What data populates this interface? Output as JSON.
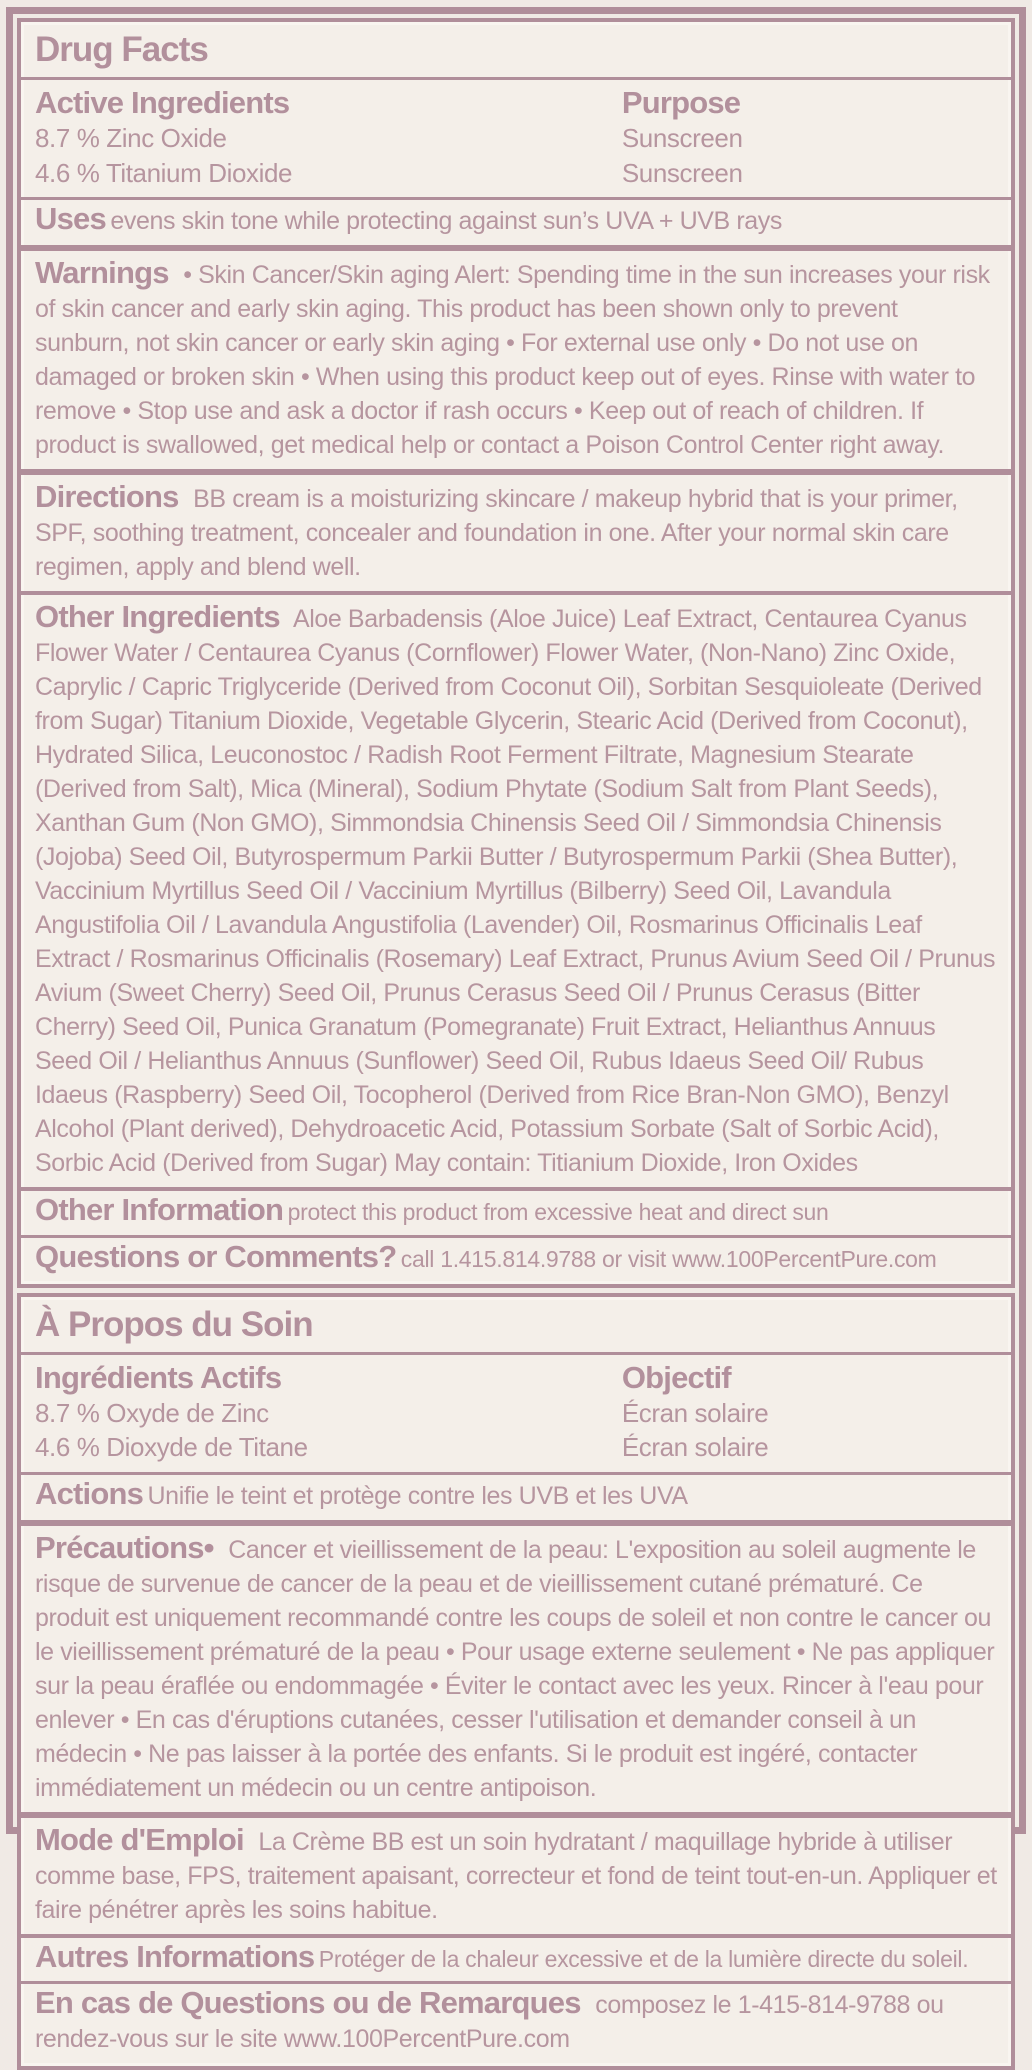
{
  "colors": {
    "background": "#f0eae5",
    "panel_background": "#f4efe9",
    "heading_ink": "#b2909c",
    "body_ink": "#b6959f",
    "border": "#b08e9a"
  },
  "en": {
    "title": "Drug Facts",
    "active": {
      "heading": "Active Ingredients",
      "purpose_heading": "Purpose",
      "rows": [
        {
          "ingredient": "8.7 % Zinc Oxide",
          "purpose": "Sunscreen"
        },
        {
          "ingredient": "4.6 % Titanium Dioxide",
          "purpose": "Sunscreen"
        }
      ]
    },
    "uses": {
      "heading": "Uses",
      "text": "evens skin tone while protecting against sun’s UVA + UVB rays"
    },
    "warnings": {
      "heading": "Warnings",
      "text": "• Skin Cancer/Skin aging Alert: Spending time in the sun increases your risk of skin cancer and early skin aging. This product has been shown only to prevent sunburn, not skin cancer or early skin aging • For external use only • Do not use on damaged or broken skin • When using this product keep out of eyes. Rinse with water to remove • Stop use and ask a doctor if rash occurs • Keep out of reach of children. If product is swallowed, get medical help or contact a Poison Control Center right away."
    },
    "directions": {
      "heading": "Directions",
      "text": "BB cream is a moisturizing skincare / makeup hybrid that is your primer, SPF, soothing treatment, concealer and foundation in one.  After your normal skin care regimen, apply and blend well."
    },
    "other_ingredients": {
      "heading": "Other Ingredients",
      "text": "Aloe Barbadensis (Aloe Juice) Leaf Extract, Centaurea Cyanus Flower Water / Centaurea Cyanus (Cornflower) Flower Water, (Non-Nano) Zinc Oxide, Caprylic / Capric Triglyceride (Derived from Coconut Oil), Sorbitan Sesquioleate (Derived from Sugar) Titanium Dioxide, Vegetable Glycerin, Stearic Acid (Derived from Coconut), Hydrated Silica, Leuconostoc / Radish Root Ferment Filtrate, Magnesium Stearate (Derived from Salt), Mica (Mineral), Sodium Phytate (Sodium Salt from Plant Seeds), Xanthan Gum (Non GMO), Simmondsia Chinensis Seed Oil / Simmondsia Chinensis (Jojoba) Seed Oil, Butyrospermum Parkii Butter / Butyrospermum Parkii (Shea Butter), Vaccinium Myrtillus Seed Oil / Vaccinium Myrtillus (Bilberry) Seed Oil, Lavandula Angustifolia Oil / Lavandula Angustifolia (Lavender) Oil, Rosmarinus Officinalis Leaf Extract / Rosmarinus Officinalis (Rosemary) Leaf Extract, Prunus Avium Seed Oil / Prunus Avium (Sweet Cherry) Seed Oil, Prunus Cerasus Seed Oil / Prunus Cerasus (Bitter Cherry) Seed Oil, Punica Granatum (Pomegranate)  Fruit Extract, Helianthus Annuus Seed Oil / Helianthus Annuus (Sunflower) Seed Oil, Rubus Idaeus Seed Oil/ Rubus Idaeus (Raspberry) Seed Oil, Tocopherol (Derived from Rice Bran-Non GMO), Benzyl Alcohol (Plant derived), Dehydroacetic Acid, Potassium Sorbate (Salt of Sorbic Acid), Sorbic Acid (Derived from Sugar) May contain: Titianium Dioxide, Iron Oxides"
    },
    "other_information": {
      "heading": "Other Information",
      "text": "protect this product from excessive heat and direct sun"
    },
    "questions": {
      "heading": "Questions or Comments?",
      "text": "call 1.415.814.9788  or visit www.100PercentPure.com"
    }
  },
  "fr": {
    "title": "À Propos du Soin",
    "active": {
      "heading": "Ingrédients Actifs",
      "purpose_heading": "Objectif",
      "rows": [
        {
          "ingredient": "8.7 % Oxyde de Zinc",
          "purpose": "Écran solaire"
        },
        {
          "ingredient": "4.6 % Dioxyde de Titane",
          "purpose": "Écran solaire"
        }
      ]
    },
    "uses": {
      "heading": "Actions",
      "text": "Unifie le teint et protège contre les UVB et les UVA"
    },
    "warnings": {
      "heading": "Précautions•",
      "text": "Cancer et vieillissement de la peau: L'exposition au soleil augmente le risque de survenue de cancer de la peau et de vieillissement cutané prématuré. Ce produit est uniquement recommandé contre les coups de soleil et non contre le cancer ou le vieillissement prématuré de la peau • Pour usage externe seulement • Ne pas appliquer sur la peau éraflée ou endommagée • Éviter le contact avec les yeux. Rincer à l'eau pour enlever • En cas d'éruptions cutanées, cesser l'utilisation et demander conseil à un médecin • Ne pas laisser à la portée des enfants. Si le produit est ingéré, contacter immédiatement un médecin ou un centre antipoison."
    },
    "directions": {
      "heading": "Mode d'Emploi",
      "text": "La Crème BB est un soin hydratant / maquillage hybride à utiliser comme base, FPS, traitement apaisant, correcteur et fond de teint tout-en-un. Appliquer et faire pénétrer après les soins habitue."
    },
    "other_information": {
      "heading": "Autres Informations",
      "text": "Protéger de la chaleur excessive et de la lumière directe du soleil."
    },
    "questions": {
      "heading": "En cas de Questions ou de Remarques",
      "text": "composez le 1-415-814-9788 ou rendez-vous sur le site www.100PercentPure.com"
    }
  }
}
